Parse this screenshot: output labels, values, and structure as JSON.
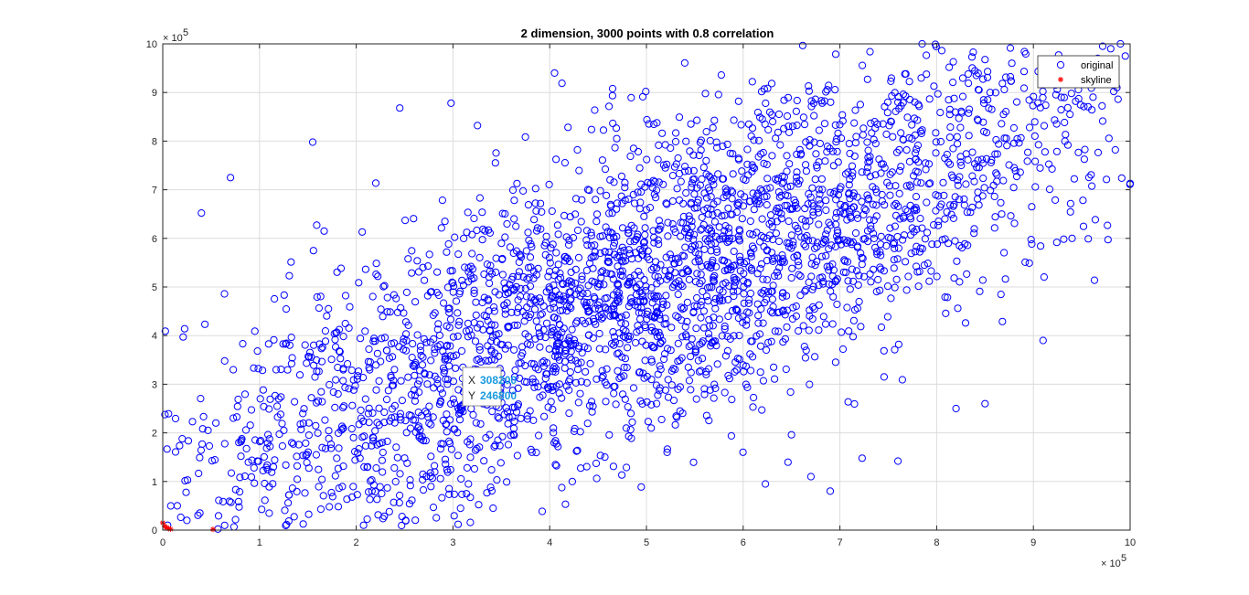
{
  "chart_data": {
    "type": "scatter",
    "title": "2 dimension, 3000 points with 0.8 correlation",
    "xlabel": "",
    "ylabel": "",
    "xlim": [
      0,
      1000000
    ],
    "ylim": [
      0,
      1000000
    ],
    "x_ticks": [
      0,
      100000,
      200000,
      300000,
      400000,
      500000,
      600000,
      700000,
      800000,
      900000,
      1000000
    ],
    "y_ticks": [
      0,
      100000,
      200000,
      300000,
      400000,
      500000,
      600000,
      700000,
      800000,
      900000,
      1000000
    ],
    "x_tick_labels": [
      "0",
      "1",
      "2",
      "3",
      "4",
      "5",
      "6",
      "7",
      "8",
      "9",
      "10"
    ],
    "y_tick_labels": [
      "0",
      "1",
      "2",
      "3",
      "4",
      "5",
      "6",
      "7",
      "8",
      "9",
      "10"
    ],
    "x_exponent": "× 10",
    "y_exponent": "× 10",
    "exponent_power": "5",
    "grid": true,
    "legend_position": "top-right",
    "series": [
      {
        "name": "original",
        "marker": "circle",
        "color": "#0000ff",
        "count": 3000,
        "correlation": 0.8,
        "points": [
          [
            308200,
            246800
          ],
          [
            70000,
            725000
          ],
          [
            155000,
            798000
          ],
          [
            40000,
            652000
          ],
          [
            245000,
            868000
          ],
          [
            298000,
            878000
          ],
          [
            405000,
            940000
          ],
          [
            785000,
            1000000
          ],
          [
            723000,
            148000
          ],
          [
            760000,
            142000
          ],
          [
            690000,
            80000
          ],
          [
            670000,
            110000
          ],
          [
            623000,
            95000
          ],
          [
            15000,
            50000
          ],
          [
            25000,
            20000
          ],
          [
            5000,
            10000
          ],
          [
            980000,
            990000
          ],
          [
            990000,
            1000000
          ],
          [
            995000,
            975000
          ],
          [
            1000000,
            713000
          ],
          [
            940000,
            600000
          ],
          [
            910000,
            390000
          ],
          [
            820000,
            250000
          ],
          [
            850000,
            260000
          ]
        ]
      },
      {
        "name": "skyline",
        "marker": "asterisk",
        "color": "#ff0000",
        "points": [
          [
            0,
            15000
          ],
          [
            2000,
            8000
          ],
          [
            4000,
            5000
          ],
          [
            6000,
            3000
          ],
          [
            8000,
            2000
          ],
          [
            52000,
            1500
          ]
        ]
      }
    ],
    "datatip": {
      "x_label": "X",
      "y_label": "Y",
      "x_value": "308200",
      "y_value": "246800",
      "x": 308200,
      "y": 246800
    }
  }
}
